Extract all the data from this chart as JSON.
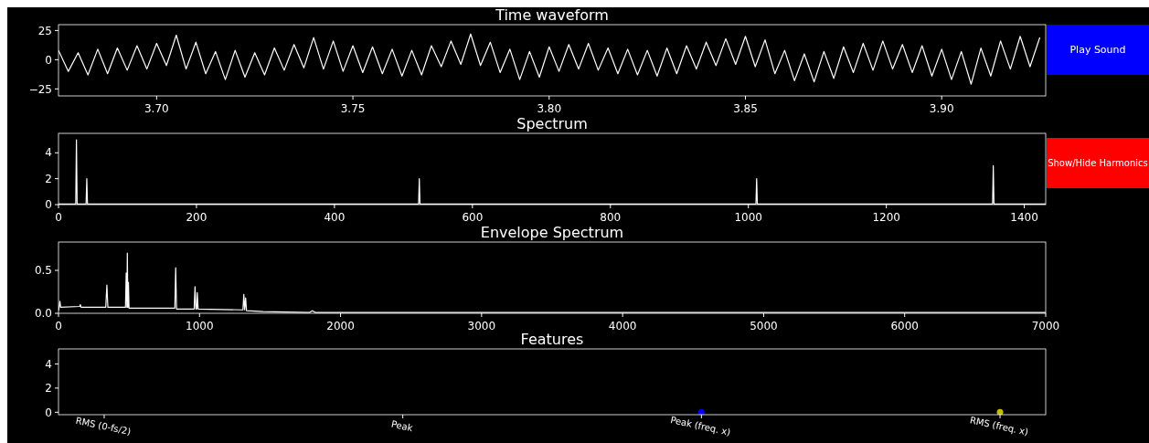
{
  "chart_data": [
    {
      "type": "line",
      "title": "Time waveform",
      "annotations": [
        "Play Sound"
      ],
      "xlim": [
        3.675,
        3.9265
      ],
      "xticks": [
        {
          "value": 3.7,
          "label": "3.70"
        },
        3.75,
        {
          "value": 3.8,
          "label": "3.80"
        },
        3.85,
        {
          "value": 3.9,
          "label": "3.90"
        }
      ],
      "ylim": [
        -31,
        30
      ],
      "yticks": [
        {
          "value": -25,
          "label": "−25"
        },
        0,
        25
      ],
      "grid": false,
      "x": [
        3.675,
        3.6775,
        3.68,
        3.6825,
        3.685,
        3.6875,
        3.69,
        3.6925,
        3.695,
        3.6975,
        3.7,
        3.7025,
        3.705,
        3.7075,
        3.71,
        3.7125,
        3.715,
        3.7175,
        3.72,
        3.7225,
        3.725,
        3.7275,
        3.73,
        3.7325,
        3.735,
        3.7375,
        3.74,
        3.7425,
        3.745,
        3.7475,
        3.75,
        3.7525,
        3.755,
        3.7575,
        3.76,
        3.7625,
        3.765,
        3.7675,
        3.77,
        3.7725,
        3.775,
        3.7775,
        3.78,
        3.7825,
        3.785,
        3.7875,
        3.79,
        3.7925,
        3.795,
        3.7975,
        3.8,
        3.8025,
        3.805,
        3.8075,
        3.81,
        3.8125,
        3.815,
        3.8175,
        3.82,
        3.8225,
        3.825,
        3.8275,
        3.83,
        3.8325,
        3.835,
        3.8375,
        3.84,
        3.8425,
        3.845,
        3.8475,
        3.85,
        3.8525,
        3.855,
        3.8575,
        3.86,
        3.8625,
        3.865,
        3.8675,
        3.87,
        3.8725,
        3.875,
        3.8775,
        3.88,
        3.8825,
        3.885,
        3.8875,
        3.89,
        3.8925,
        3.895,
        3.8975,
        3.9,
        3.9025,
        3.905,
        3.9075,
        3.91,
        3.9125,
        3.915,
        3.9175,
        3.92,
        3.9225,
        3.925
      ],
      "series": [
        {
          "color": "#ffffff",
          "values": [
            8,
            -10,
            6,
            -13,
            9,
            -12,
            10,
            -9,
            12,
            -8,
            14,
            -5,
            21,
            -8,
            15,
            -12,
            7,
            -17,
            8,
            -15,
            6,
            -13,
            10,
            -9,
            13,
            -7,
            19,
            -8,
            16,
            -10,
            12,
            -11,
            11,
            -12,
            9,
            -14,
            8,
            -13,
            12,
            -6,
            16,
            -4,
            22,
            -5,
            15,
            -11,
            9,
            -17,
            7,
            -15,
            11,
            -10,
            13,
            -8,
            14,
            -9,
            10,
            -12,
            9,
            -13,
            8,
            -14,
            10,
            -12,
            12,
            -8,
            15,
            -5,
            18,
            -4,
            20,
            -6,
            17,
            -12,
            8,
            -18,
            5,
            -19,
            7,
            -16,
            11,
            -11,
            14,
            -9,
            16,
            -8,
            13,
            -11,
            12,
            -14,
            9,
            -17,
            7,
            -21,
            10,
            -14,
            16,
            -8,
            20,
            -6,
            19
          ]
        }
      ]
    },
    {
      "type": "line",
      "title": "Spectrum",
      "annotations": [
        "Show/Hide Harmonics"
      ],
      "xlim": [
        0,
        1431
      ],
      "xticks": [
        0,
        200,
        400,
        600,
        800,
        1000,
        1200,
        1400
      ],
      "ylim": [
        0,
        5.5
      ],
      "yticks": [
        0,
        2,
        4
      ],
      "grid": false,
      "x": [
        0,
        25,
        26,
        27,
        40,
        41,
        42,
        522,
        523,
        524,
        1011,
        1012,
        1013,
        1354,
        1355,
        1356,
        1431
      ],
      "series": [
        {
          "color": "#ffffff",
          "values": [
            0.05,
            0.05,
            5,
            0.05,
            0.05,
            2,
            0.05,
            0.05,
            2,
            0.05,
            0.05,
            2,
            0.05,
            0.05,
            3,
            0.05,
            0.05
          ]
        }
      ]
    },
    {
      "type": "line",
      "title": "Envelope Spectrum",
      "xlim": [
        0,
        7000
      ],
      "xticks": [
        0,
        1000,
        2000,
        3000,
        4000,
        5000,
        6000,
        7000
      ],
      "ylim": [
        0,
        0.83
      ],
      "yticks": [
        {
          "value": 0,
          "label": "0.0"
        },
        0.5
      ],
      "grid": false,
      "x": [
        0,
        5,
        10,
        15,
        150,
        155,
        160,
        335,
        343,
        350,
        475,
        480,
        485,
        488,
        492,
        496,
        500,
        825,
        831,
        837,
        962,
        968,
        974,
        980,
        984,
        990,
        1308,
        1314,
        1320,
        1327,
        1333,
        1450,
        1780,
        1800,
        1820,
        2000,
        7000
      ],
      "series": [
        {
          "color": "#ffffff",
          "values": [
            0.03,
            0.08,
            0.14,
            0.07,
            0.08,
            0.1,
            0.07,
            0.07,
            0.33,
            0.07,
            0.07,
            0.47,
            0.07,
            0.7,
            0.07,
            0.36,
            0.06,
            0.06,
            0.53,
            0.05,
            0.05,
            0.31,
            0.05,
            0.05,
            0.24,
            0.05,
            0.04,
            0.22,
            0.04,
            0.18,
            0.03,
            0.02,
            0.01,
            0.03,
            0.01,
            0.01,
            0.01
          ]
        }
      ]
    },
    {
      "type": "scatter",
      "title": "Features",
      "categories": [
        "RMS (0-fs/2)",
        "Peak",
        "Peak (freq. x)",
        "RMS (freq. x)"
      ],
      "ylim": [
        -0.2,
        5.24
      ],
      "yticks": [
        0,
        2,
        4
      ],
      "grid": false,
      "marker": "circle",
      "series": [
        {
          "values": [
            null,
            null,
            0,
            0
          ],
          "colors": [
            null,
            null,
            "#0000ff",
            "#bfbf00"
          ]
        }
      ]
    }
  ]
}
